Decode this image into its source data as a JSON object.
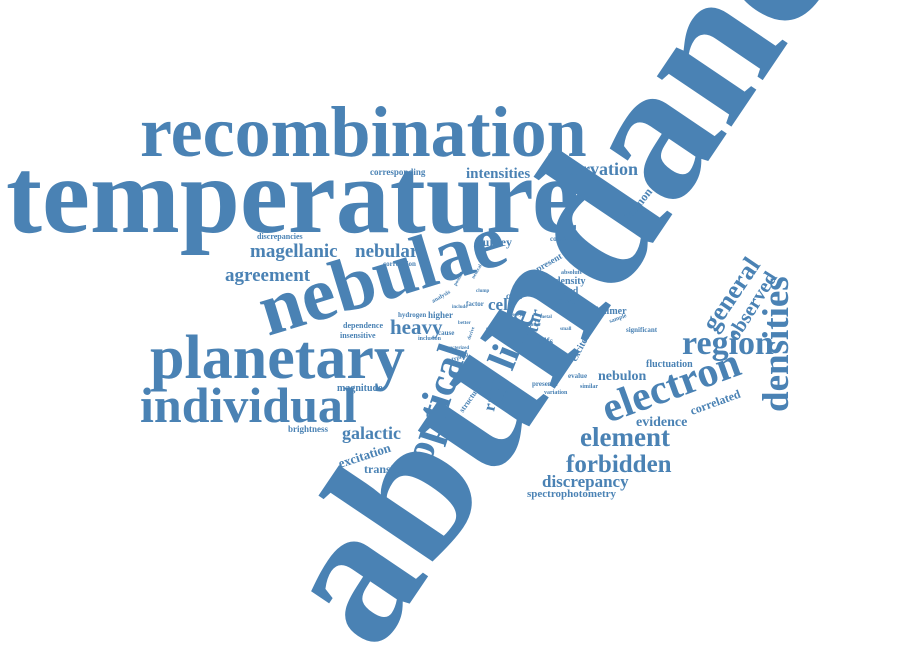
{
  "color": "#4a82b4",
  "words": [
    "abundance",
    "temperature",
    "recombination",
    "nebulae",
    "planetary",
    "individual",
    "electron",
    "densities",
    "optical",
    "region",
    "element",
    "forbidden",
    "line",
    "general",
    "observed",
    "observation",
    "intensities",
    "magellanic",
    "nebular",
    "agreement",
    "heavy",
    "galactic",
    "discrepancy",
    "star",
    "ratio",
    "cels",
    "evidence",
    "nebulon",
    "plasmon",
    "correlated",
    "survey",
    "consistent",
    "corresponding",
    "discrepancies",
    "correlation",
    "cold",
    "density",
    "cloud",
    "lower",
    "absolute",
    "present",
    "adfs",
    "excited",
    "balmer",
    "significant",
    "fluctuation",
    "factor",
    "higher",
    "hydrogen",
    "dependence",
    "insensitive",
    "magnitude",
    "brightness",
    "excitation",
    "transition",
    "spectrophotometry",
    "structure",
    "presence",
    "variation",
    "surface",
    "cause",
    "inclusion",
    "typical",
    "evalue",
    "similar",
    "sample",
    "analysis",
    "characterized",
    "possibly",
    "neutral",
    "include",
    "theory",
    "better",
    "metal",
    "clump",
    "derive",
    "small",
    "hotter",
    "gas"
  ]
}
